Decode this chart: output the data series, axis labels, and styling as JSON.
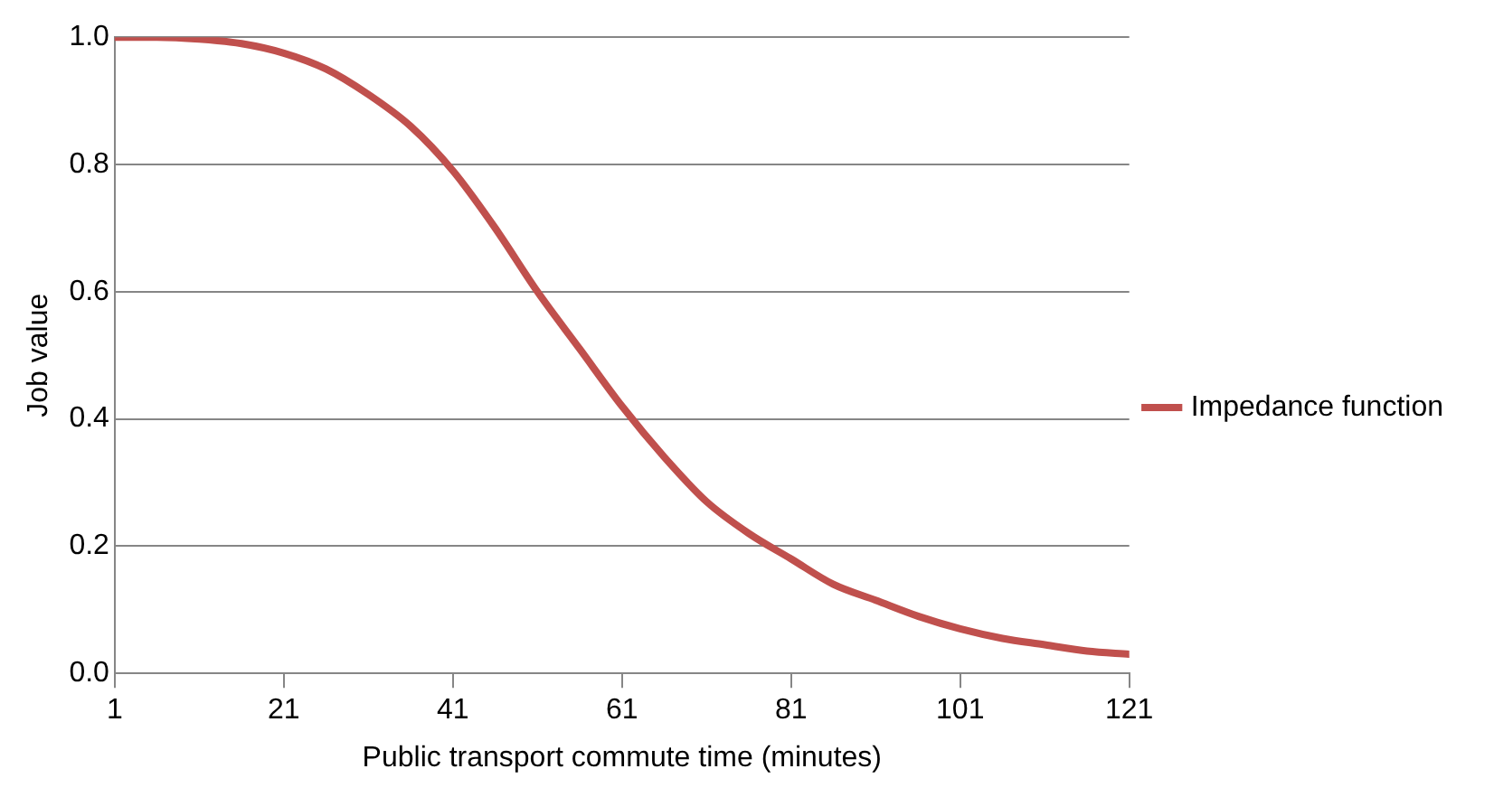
{
  "chart_data": {
    "type": "line",
    "xlabel": "Public transport commute time (minutes)",
    "ylabel": "Job value",
    "x": [
      1,
      6,
      11,
      16,
      21,
      26,
      31,
      36,
      41,
      46,
      51,
      56,
      61,
      66,
      71,
      76,
      81,
      86,
      91,
      96,
      101,
      106,
      111,
      116,
      121
    ],
    "series": [
      {
        "name": "Impedance function",
        "color": "#c0504d",
        "values": [
          1.0,
          1.0,
          0.997,
          0.99,
          0.975,
          0.95,
          0.91,
          0.86,
          0.79,
          0.7,
          0.6,
          0.51,
          0.42,
          0.34,
          0.27,
          0.22,
          0.18,
          0.14,
          0.115,
          0.09,
          0.07,
          0.055,
          0.045,
          0.035,
          0.03
        ]
      }
    ],
    "xlim": [
      1,
      121
    ],
    "xticks": [
      1,
      21,
      41,
      61,
      81,
      101,
      121
    ],
    "ylim": [
      0,
      1
    ],
    "yticks": [
      {
        "value": 0,
        "label": "0.0"
      },
      {
        "value": 0.2,
        "label": "0.2"
      },
      {
        "value": 0.4,
        "label": "0.4"
      },
      {
        "value": 0.6,
        "label": "0.6"
      },
      {
        "value": 0.8,
        "label": "0.8"
      },
      {
        "value": 1,
        "label": "1.0"
      }
    ],
    "grid": "y",
    "legend": "right",
    "marker": "none",
    "line_style": "solid"
  }
}
